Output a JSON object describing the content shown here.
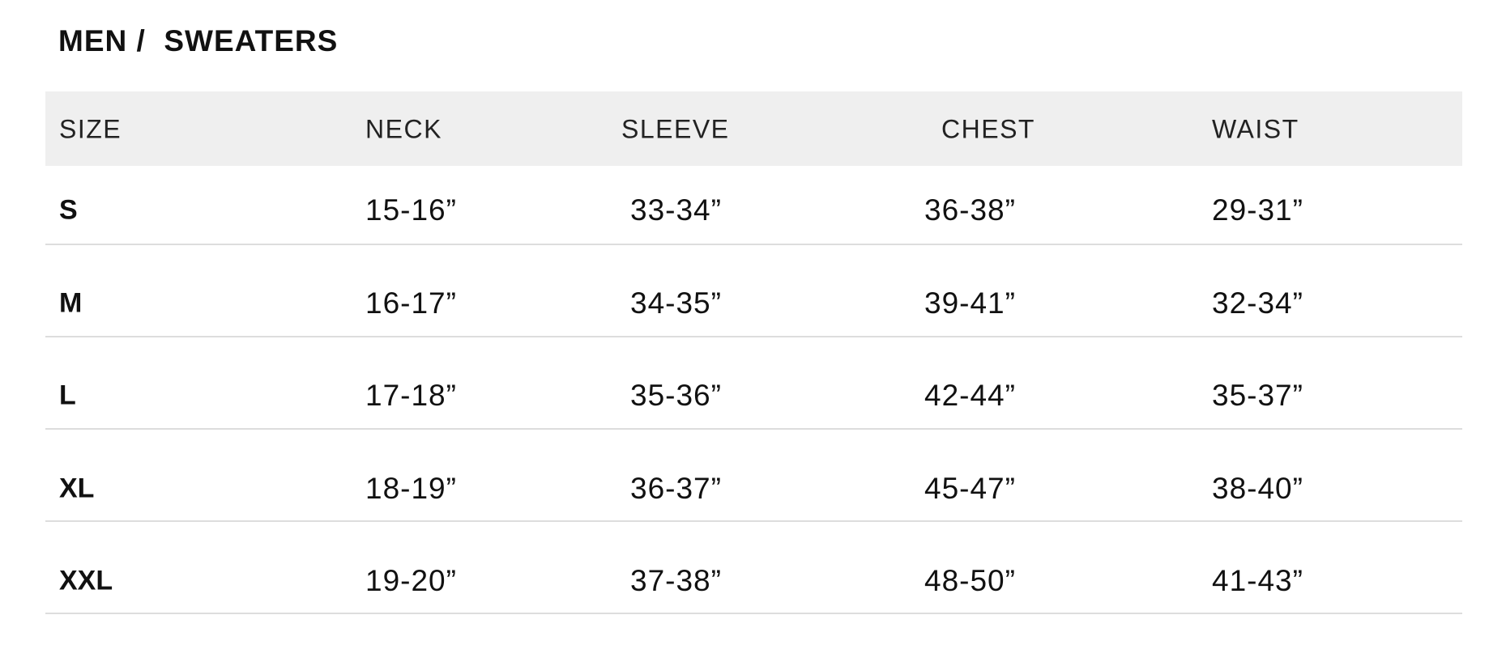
{
  "title": "MEN /  SWEATERS",
  "columns": [
    "SIZE",
    "NECK",
    "SLEEVE",
    "CHEST",
    "WAIST"
  ],
  "rows": [
    {
      "size": "S",
      "neck": "15-16”",
      "sleeve": "33-34”",
      "chest": "36-38”",
      "waist": "29-31”"
    },
    {
      "size": "M",
      "neck": "16-17”",
      "sleeve": "34-35”",
      "chest": "39-41”",
      "waist": "32-34”"
    },
    {
      "size": "L",
      "neck": "17-18”",
      "sleeve": "35-36”",
      "chest": "42-44”",
      "waist": "35-37”"
    },
    {
      "size": "XL",
      "neck": "18-19”",
      "sleeve": "36-37”",
      "chest": "45-47”",
      "waist": "38-40”"
    },
    {
      "size": "XXL",
      "neck": "19-20”",
      "sleeve": "37-38”",
      "chest": "48-50”",
      "waist": "41-43”"
    }
  ]
}
